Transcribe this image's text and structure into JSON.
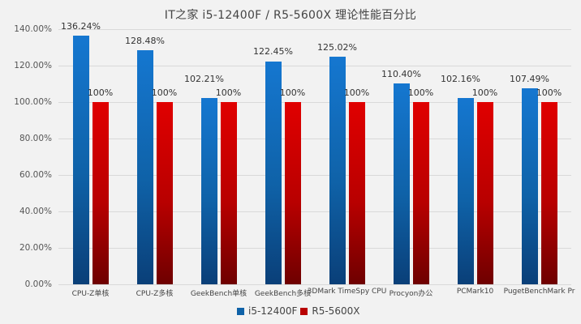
{
  "chart_data": {
    "type": "bar",
    "title": "IT之家   i5-12400F / R5-5600X 理论性能百分比",
    "categories": [
      "CPU-Z单核",
      "CPU-Z多核",
      "GeekBench单核",
      "GeekBench多核",
      "3DMark TimeSpy CPU",
      "Procyon办公",
      "PCMark10",
      "PugetBenchMark Pr"
    ],
    "series": [
      {
        "name": "i5-12400F",
        "color": "#1577d0",
        "values": [
          136.24,
          128.48,
          102.21,
          122.45,
          125.02,
          110.4,
          102.16,
          107.49
        ],
        "labels": [
          "136.24%",
          "128.48%",
          "102.21%",
          "122.45%",
          "125.02%",
          "110.40%",
          "102.16%",
          "107.49%"
        ]
      },
      {
        "name": "R5-5600X",
        "color": "#d40000",
        "values": [
          100,
          100,
          100,
          100,
          100,
          100,
          100,
          100
        ],
        "labels": [
          "100%",
          "100%",
          "100%",
          "100%",
          "100%",
          "100%",
          "100%",
          "100%"
        ]
      }
    ],
    "xlabel": "",
    "ylabel": "",
    "ylim": [
      0,
      140
    ],
    "yticks": [
      "0.00%",
      "20.00%",
      "40.00%",
      "60.00%",
      "80.00%",
      "100.00%",
      "120.00%",
      "140.00%"
    ],
    "grid": true,
    "legend_position": "bottom"
  },
  "title": "IT之家   i5-12400F / R5-5600X 理论性能百分比",
  "legend": {
    "a": "i5-12400F",
    "b": "R5-5600X"
  }
}
